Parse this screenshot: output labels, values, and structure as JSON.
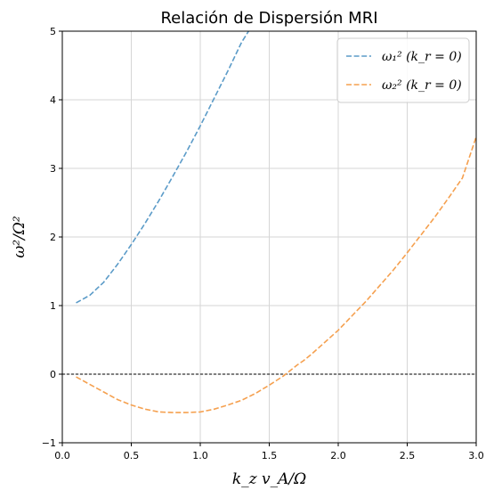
{
  "chart_data": {
    "type": "line",
    "title": "Relación de Dispersión MRI",
    "xlabel": "k_z v_A/Ω",
    "ylabel": "ω²/Ω²",
    "xlim": [
      0,
      3
    ],
    "ylim": [
      -1,
      5
    ],
    "xticks": [
      "0.0",
      "0.5",
      "1.0",
      "1.5",
      "2.0",
      "2.5",
      "3.0"
    ],
    "yticks": [
      "−1",
      "0",
      "1",
      "2",
      "3",
      "4",
      "5"
    ],
    "grid": true,
    "legend_position": "top-right",
    "reference_line": {
      "y": 0,
      "style": "dashed",
      "color": "#000000"
    },
    "series": [
      {
        "name": "ω₁² (k_r = 0)",
        "color": "#5b9bc8",
        "style": "dashed",
        "x": [
          0.1,
          0.2,
          0.3,
          0.4,
          0.5,
          0.6,
          0.7,
          0.8,
          0.9,
          1.0,
          1.1,
          1.2,
          1.3,
          1.35
        ],
        "y": [
          1.04,
          1.15,
          1.34,
          1.6,
          1.89,
          2.2,
          2.53,
          2.88,
          3.24,
          3.62,
          4.02,
          4.42,
          4.84,
          5.0
        ]
      },
      {
        "name": "ω₂² (k_r = 0)",
        "color": "#f5a04f",
        "style": "dashed",
        "x": [
          0.1,
          0.2,
          0.3,
          0.4,
          0.5,
          0.6,
          0.7,
          0.8,
          0.9,
          1.0,
          1.1,
          1.2,
          1.3,
          1.4,
          1.5,
          1.6,
          1.7,
          1.75,
          1.8,
          1.9,
          2.0,
          2.1,
          2.2,
          2.3,
          2.4,
          2.5,
          2.6,
          2.7,
          2.8,
          2.9,
          3.0
        ],
        "y": [
          -0.04,
          -0.15,
          -0.26,
          -0.37,
          -0.45,
          -0.51,
          -0.55,
          -0.56,
          -0.56,
          -0.55,
          -0.51,
          -0.45,
          -0.38,
          -0.28,
          -0.16,
          -0.03,
          0.13,
          0.2,
          0.28,
          0.46,
          0.64,
          0.85,
          1.06,
          1.29,
          1.52,
          1.77,
          2.03,
          2.29,
          2.57,
          2.86,
          3.46
        ]
      }
    ]
  }
}
